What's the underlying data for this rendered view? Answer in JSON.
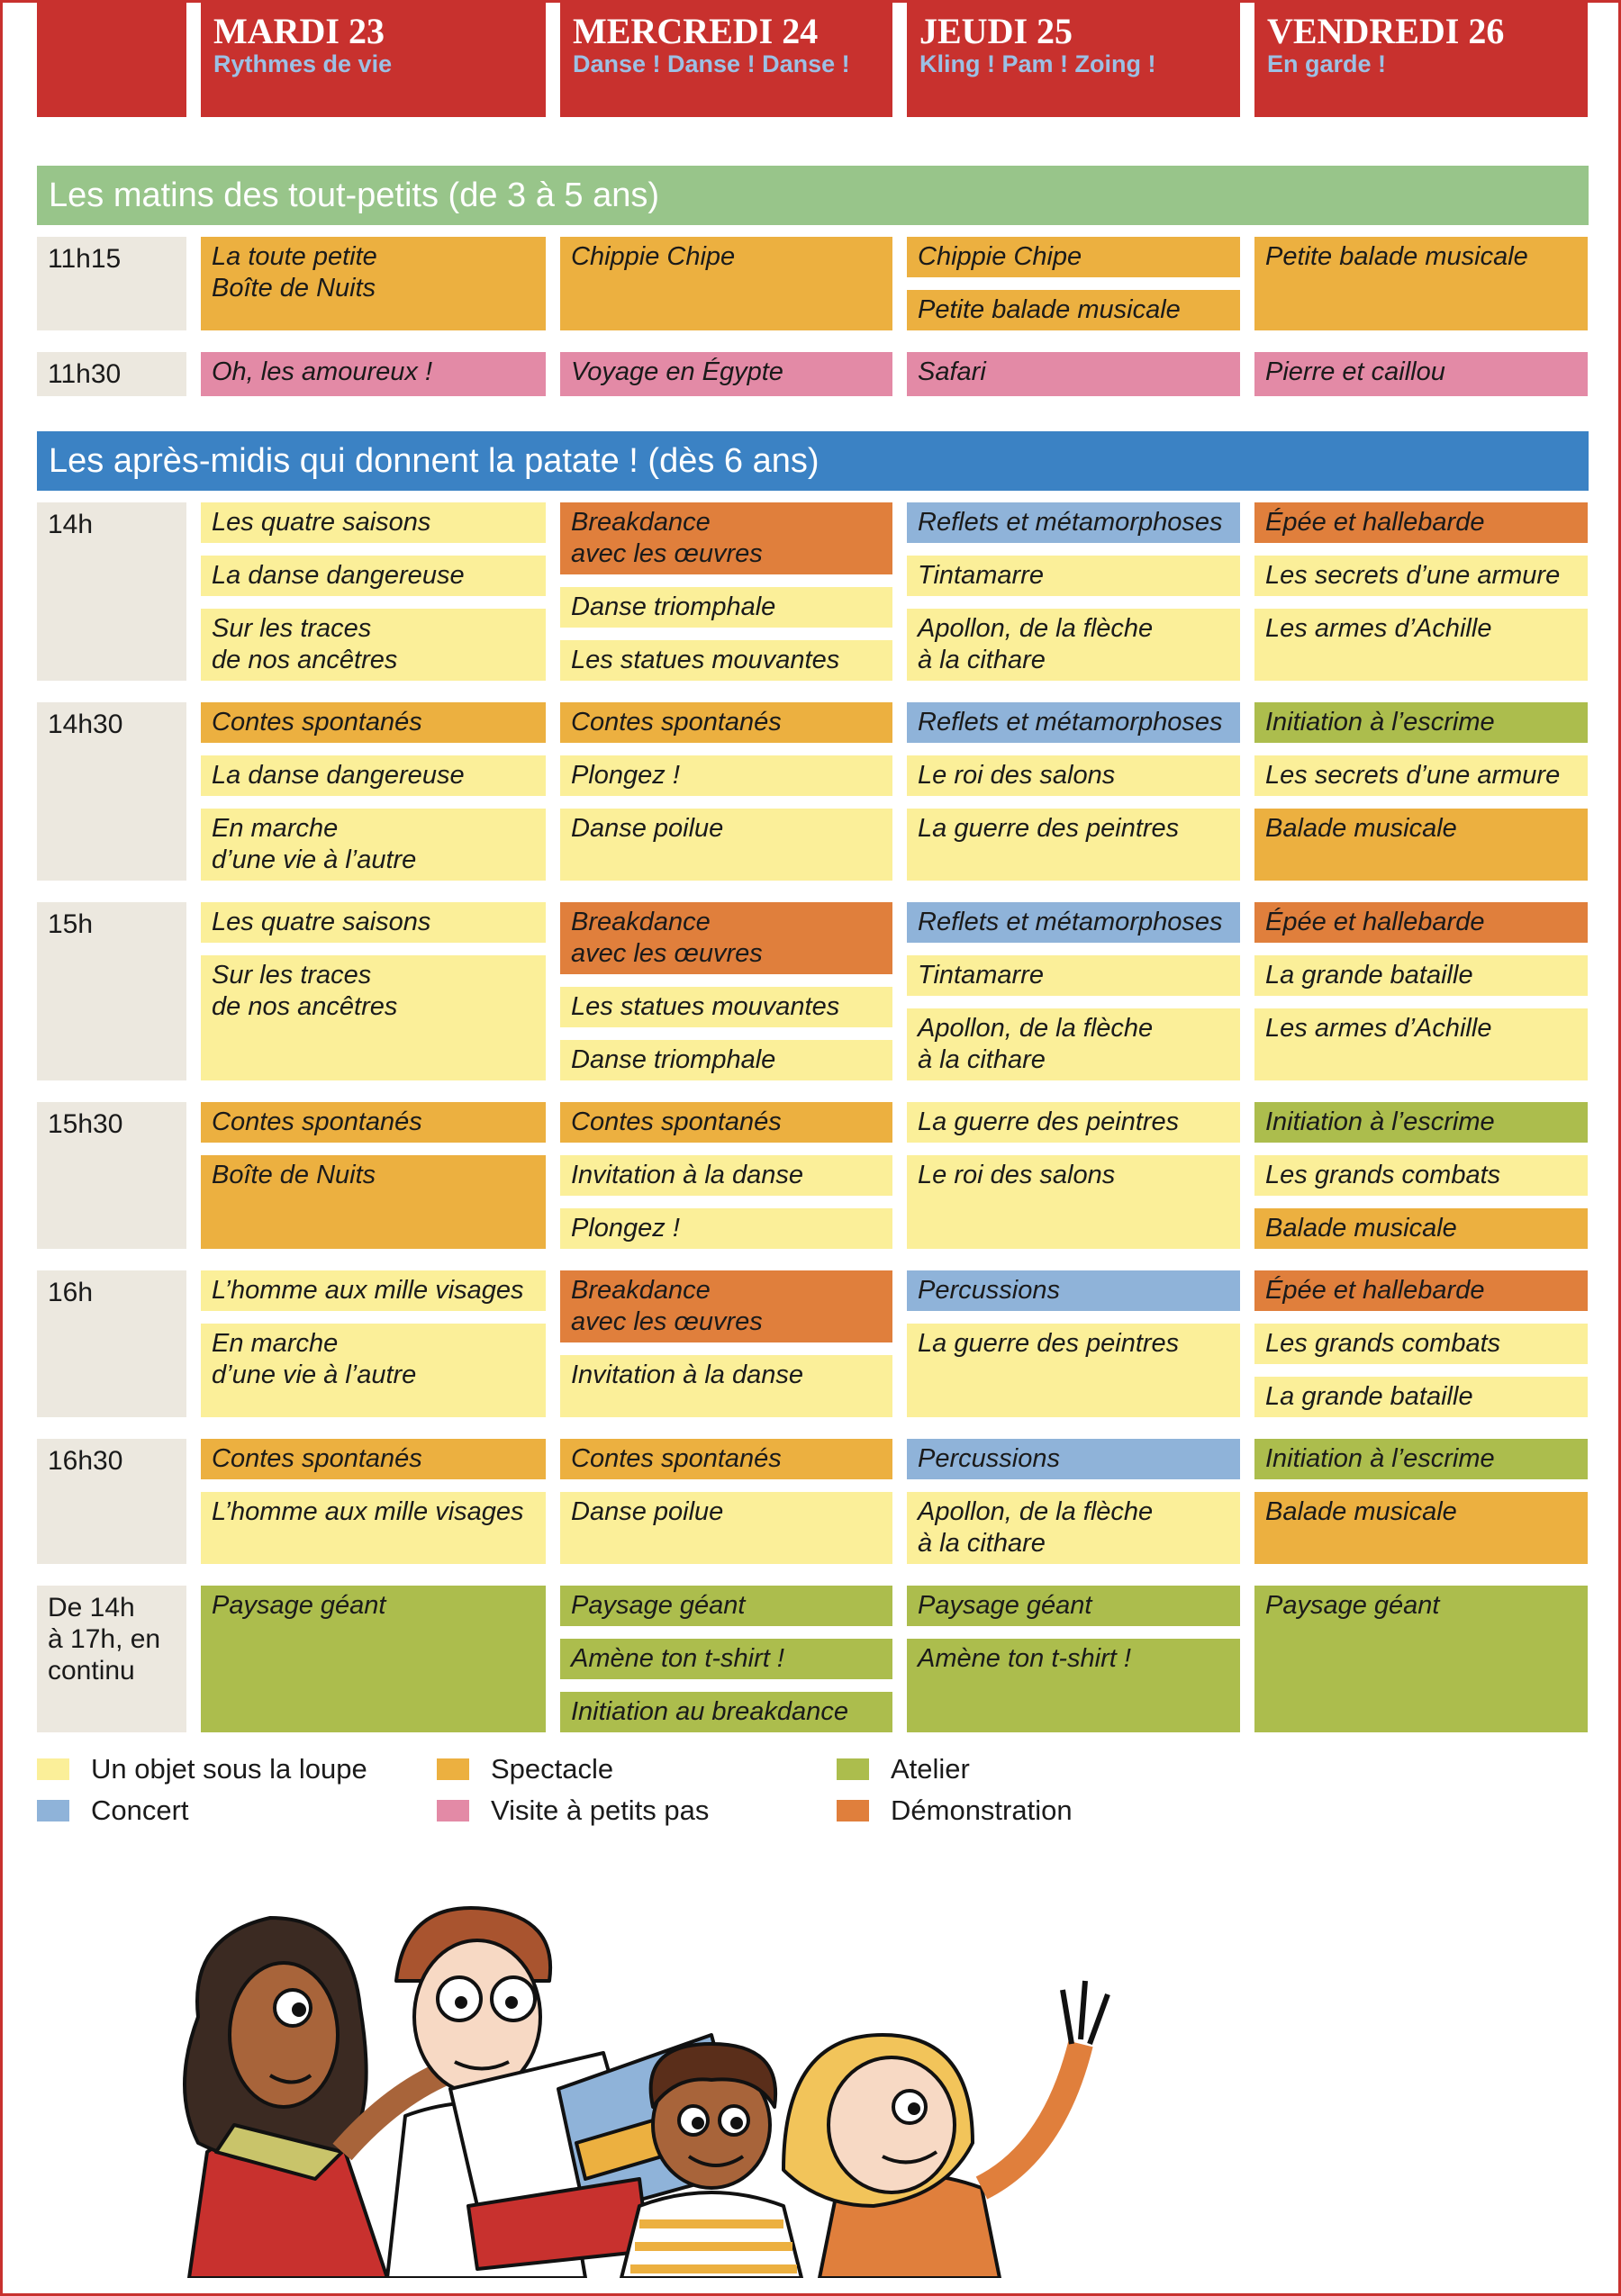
{
  "days": [
    {
      "name": "MARDI 23",
      "theme": "Rythmes de vie"
    },
    {
      "name": "MERCREDI 24",
      "theme": "Danse ! Danse ! Danse !"
    },
    {
      "name": "JEUDI 25",
      "theme": "Kling ! Pam ! Zoing !"
    },
    {
      "name": "VENDREDI 26",
      "theme": "En garde !"
    }
  ],
  "sections": [
    {
      "title": "Les matins des tout-petits (de 3 à 5 ans)",
      "color": "#98c58a",
      "rows": [
        {
          "time": "11h15",
          "cells": [
            [
              {
                "label": "La toute petite\nBoîte de Nuits",
                "color": "#ecb040"
              }
            ],
            [
              {
                "label": "Chippie Chipe",
                "color": "#ecb040"
              }
            ],
            [
              {
                "label": "Chippie Chipe",
                "color": "#ecb040"
              },
              {
                "label": "Petite balade musicale",
                "color": "#ecb040"
              }
            ],
            [
              {
                "label": "Petite balade musicale",
                "color": "#ecb040"
              }
            ]
          ]
        },
        {
          "time": "11h30",
          "cells": [
            [
              {
                "label": "Oh, les amoureux !",
                "color": "#e38aa6"
              }
            ],
            [
              {
                "label": "Voyage en Égypte",
                "color": "#e38aa6"
              }
            ],
            [
              {
                "label": "Safari",
                "color": "#e38aa6"
              }
            ],
            [
              {
                "label": "Pierre et caillou",
                "color": "#e38aa6"
              }
            ]
          ]
        }
      ]
    },
    {
      "title": "Les après-midis qui donnent la patate ! (dès 6 ans)",
      "color": "#3b82c4",
      "rows": [
        {
          "time": "14h",
          "cells": [
            [
              {
                "label": "Les quatre saisons",
                "color": "#fbef99"
              },
              {
                "label": "La danse dangereuse",
                "color": "#fbef99"
              },
              {
                "label": "Sur les traces\nde nos ancêtres",
                "color": "#fbef99"
              }
            ],
            [
              {
                "label": "Breakdance\navec les œuvres",
                "color": "#e07f3c"
              },
              {
                "label": "Danse triomphale",
                "color": "#fbef99"
              },
              {
                "label": "Les statues mouvantes",
                "color": "#fbef99"
              }
            ],
            [
              {
                "label": "Reflets et métamorphoses",
                "color": "#8fb3d9"
              },
              {
                "label": "Tintamarre",
                "color": "#fbef99"
              },
              {
                "label": "Apollon, de la flèche\nà la cithare",
                "color": "#fbef99"
              }
            ],
            [
              {
                "label": "Épée et hallebarde",
                "color": "#e07f3c"
              },
              {
                "label": "Les secrets d’une armure",
                "color": "#fbef99"
              },
              {
                "label": "Les armes d’Achille",
                "color": "#fbef99"
              }
            ]
          ]
        },
        {
          "time": "14h30",
          "cells": [
            [
              {
                "label": "Contes spontanés",
                "color": "#ecb040"
              },
              {
                "label": "La danse dangereuse",
                "color": "#fbef99"
              },
              {
                "label": "En marche\nd’une vie à l’autre",
                "color": "#fbef99"
              }
            ],
            [
              {
                "label": "Contes spontanés",
                "color": "#ecb040"
              },
              {
                "label": "Plongez !",
                "color": "#fbef99"
              },
              {
                "label": "Danse poilue",
                "color": "#fbef99"
              }
            ],
            [
              {
                "label": "Reflets et métamorphoses",
                "color": "#8fb3d9"
              },
              {
                "label": "Le roi des salons",
                "color": "#fbef99"
              },
              {
                "label": "La guerre des peintres",
                "color": "#fbef99"
              }
            ],
            [
              {
                "label": "Initiation à l’escrime",
                "color": "#acbd4d"
              },
              {
                "label": "Les secrets d’une armure",
                "color": "#fbef99"
              },
              {
                "label": "Balade musicale",
                "color": "#ecb040"
              }
            ]
          ]
        },
        {
          "time": "15h",
          "cells": [
            [
              {
                "label": "Les quatre saisons",
                "color": "#fbef99"
              },
              {
                "label": "Sur les traces\nde nos ancêtres",
                "color": "#fbef99"
              }
            ],
            [
              {
                "label": "Breakdance\navec les œuvres",
                "color": "#e07f3c"
              },
              {
                "label": "Les statues mouvantes",
                "color": "#fbef99"
              },
              {
                "label": "Danse triomphale",
                "color": "#fbef99"
              }
            ],
            [
              {
                "label": "Reflets et métamorphoses",
                "color": "#8fb3d9"
              },
              {
                "label": "Tintamarre",
                "color": "#fbef99"
              },
              {
                "label": "Apollon, de la flèche\nà la cithare",
                "color": "#fbef99"
              }
            ],
            [
              {
                "label": "Épée et hallebarde",
                "color": "#e07f3c"
              },
              {
                "label": "La grande bataille",
                "color": "#fbef99"
              },
              {
                "label": "Les armes d’Achille",
                "color": "#fbef99"
              }
            ]
          ]
        },
        {
          "time": "15h30",
          "cells": [
            [
              {
                "label": "Contes spontanés",
                "color": "#ecb040"
              },
              {
                "label": "Boîte de Nuits",
                "color": "#ecb040"
              }
            ],
            [
              {
                "label": "Contes spontanés",
                "color": "#ecb040"
              },
              {
                "label": "Invitation à la danse",
                "color": "#fbef99"
              },
              {
                "label": "Plongez !",
                "color": "#fbef99"
              }
            ],
            [
              {
                "label": "La guerre des peintres",
                "color": "#fbef99"
              },
              {
                "label": "Le roi des salons",
                "color": "#fbef99"
              }
            ],
            [
              {
                "label": "Initiation à l’escrime",
                "color": "#acbd4d"
              },
              {
                "label": "Les grands combats",
                "color": "#fbef99"
              },
              {
                "label": "Balade musicale",
                "color": "#ecb040"
              }
            ]
          ]
        },
        {
          "time": "16h",
          "cells": [
            [
              {
                "label": "L’homme aux mille visages",
                "color": "#fbef99"
              },
              {
                "label": "En marche\nd’une vie à l’autre",
                "color": "#fbef99"
              }
            ],
            [
              {
                "label": "Breakdance\navec les œuvres",
                "color": "#e07f3c"
              },
              {
                "label": "Invitation à la danse",
                "color": "#fbef99"
              }
            ],
            [
              {
                "label": "Percussions",
                "color": "#8fb3d9"
              },
              {
                "label": "La guerre des peintres",
                "color": "#fbef99"
              }
            ],
            [
              {
                "label": "Épée et hallebarde",
                "color": "#e07f3c"
              },
              {
                "label": "Les grands combats",
                "color": "#fbef99"
              },
              {
                "label": "La grande bataille",
                "color": "#fbef99"
              }
            ]
          ]
        },
        {
          "time": "16h30",
          "cells": [
            [
              {
                "label": "Contes spontanés",
                "color": "#ecb040"
              },
              {
                "label": "L’homme aux mille visages",
                "color": "#fbef99"
              }
            ],
            [
              {
                "label": "Contes spontanés",
                "color": "#ecb040"
              },
              {
                "label": "Danse poilue",
                "color": "#fbef99"
              }
            ],
            [
              {
                "label": "Percussions",
                "color": "#8fb3d9"
              },
              {
                "label": "Apollon, de la flèche\nà la cithare",
                "color": "#fbef99"
              }
            ],
            [
              {
                "label": "Initiation à l’escrime",
                "color": "#acbd4d"
              },
              {
                "label": "Balade musicale",
                "color": "#ecb040"
              }
            ]
          ]
        },
        {
          "time": "De 14h\nà 17h, en\ncontinu",
          "cells": [
            [
              {
                "label": "Paysage géant",
                "color": "#acbd4d"
              }
            ],
            [
              {
                "label": "Paysage géant",
                "color": "#acbd4d"
              },
              {
                "label": "Amène ton t-shirt !",
                "color": "#acbd4d"
              },
              {
                "label": "Initiation au breakdance",
                "color": "#acbd4d"
              }
            ],
            [
              {
                "label": "Paysage géant",
                "color": "#acbd4d"
              },
              {
                "label": "Amène ton t-shirt !",
                "color": "#acbd4d"
              }
            ],
            [
              {
                "label": "Paysage géant",
                "color": "#acbd4d"
              }
            ]
          ]
        }
      ]
    }
  ],
  "legend": [
    {
      "label": "Un objet sous la loupe",
      "color": "#fbef99"
    },
    {
      "label": "Spectacle",
      "color": "#ecb040"
    },
    {
      "label": "Atelier",
      "color": "#acbd4d"
    },
    {
      "label": "Concert",
      "color": "#8fb3d9"
    },
    {
      "label": "Visite à petits pas",
      "color": "#e38aa6"
    },
    {
      "label": "Démonstration",
      "color": "#e07f3c"
    }
  ]
}
